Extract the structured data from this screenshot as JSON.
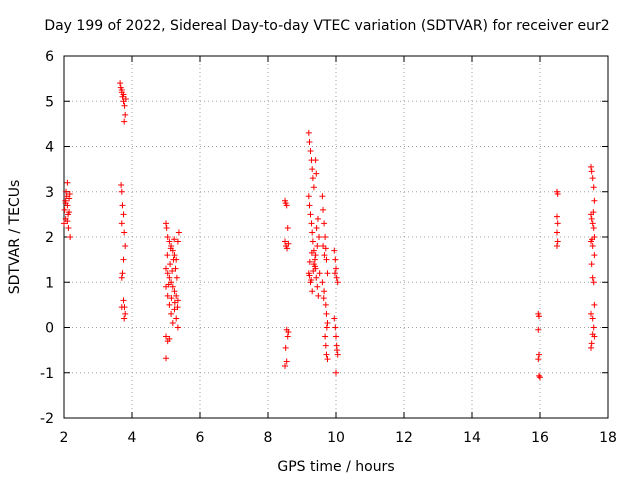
{
  "chart_data": {
    "type": "scatter",
    "title": "Day 199 of 2022, Sidereal Day-to-day VTEC variation (SDTVAR) for receiver eur2",
    "xlabel": "GPS time / hours",
    "ylabel": "SDTVAR / TECUs",
    "xlim": [
      2,
      18
    ],
    "ylim": [
      -2,
      6
    ],
    "xticks": [
      2,
      4,
      6,
      8,
      10,
      12,
      14,
      16,
      18
    ],
    "yticks": [
      -2,
      -1,
      0,
      1,
      2,
      3,
      4,
      5,
      6
    ],
    "xtick_labels": [
      "2",
      "4",
      "6",
      "8",
      "10",
      "12",
      "14",
      "16",
      "18"
    ],
    "ytick_labels": [
      "-2",
      "-1",
      "0",
      "1",
      "2",
      "3",
      "4",
      "5",
      "6"
    ],
    "grid": true,
    "marker": "plus",
    "color": "#ff0000",
    "series": [
      {
        "name": "SDTVAR",
        "points": [
          [
            2.0,
            2.3
          ],
          [
            2.02,
            2.6
          ],
          [
            2.04,
            2.8
          ],
          [
            2.05,
            2.4
          ],
          [
            2.06,
            3.0
          ],
          [
            2.08,
            2.9
          ],
          [
            2.1,
            2.7
          ],
          [
            2.1,
            3.2
          ],
          [
            2.12,
            2.5
          ],
          [
            2.13,
            2.2
          ],
          [
            2.15,
            2.85
          ],
          [
            2.17,
            2.95
          ],
          [
            2.18,
            2.0
          ],
          [
            2.05,
            2.75
          ],
          [
            2.1,
            2.35
          ],
          [
            2.15,
            2.55
          ],
          [
            3.65,
            5.4
          ],
          [
            3.67,
            5.3
          ],
          [
            3.7,
            5.2
          ],
          [
            3.72,
            5.1
          ],
          [
            3.75,
            5.0
          ],
          [
            3.78,
            4.9
          ],
          [
            3.8,
            4.7
          ],
          [
            3.77,
            4.55
          ],
          [
            3.7,
            5.25
          ],
          [
            3.75,
            5.15
          ],
          [
            3.82,
            5.05
          ],
          [
            3.68,
            3.15
          ],
          [
            3.7,
            3.0
          ],
          [
            3.72,
            2.7
          ],
          [
            3.75,
            2.5
          ],
          [
            3.7,
            2.3
          ],
          [
            3.77,
            2.1
          ],
          [
            3.8,
            1.8
          ],
          [
            3.75,
            1.5
          ],
          [
            3.72,
            1.2
          ],
          [
            3.7,
            1.1
          ],
          [
            3.75,
            0.6
          ],
          [
            3.78,
            0.45
          ],
          [
            3.8,
            0.3
          ],
          [
            3.77,
            0.2
          ],
          [
            3.7,
            0.45
          ],
          [
            5.0,
            2.3
          ],
          [
            5.02,
            2.2
          ],
          [
            5.05,
            2.0
          ],
          [
            5.1,
            1.9
          ],
          [
            5.15,
            1.8
          ],
          [
            5.2,
            1.7
          ],
          [
            5.25,
            1.6
          ],
          [
            5.3,
            1.5
          ],
          [
            5.35,
            1.9
          ],
          [
            5.38,
            2.1
          ],
          [
            5.0,
            1.3
          ],
          [
            5.05,
            1.2
          ],
          [
            5.1,
            1.1
          ],
          [
            5.15,
            1.0
          ],
          [
            5.2,
            0.9
          ],
          [
            5.25,
            0.8
          ],
          [
            5.3,
            0.7
          ],
          [
            5.35,
            0.6
          ],
          [
            5.0,
            0.9
          ],
          [
            5.05,
            0.7
          ],
          [
            5.1,
            0.5
          ],
          [
            5.15,
            0.3
          ],
          [
            5.2,
            0.1
          ],
          [
            5.25,
            0.4
          ],
          [
            5.3,
            0.2
          ],
          [
            5.35,
            0.0
          ],
          [
            5.0,
            -0.2
          ],
          [
            5.05,
            -0.3
          ],
          [
            5.1,
            -0.25
          ],
          [
            5.0,
            -0.68
          ],
          [
            5.12,
            1.4
          ],
          [
            5.22,
            1.5
          ],
          [
            5.28,
            1.3
          ],
          [
            5.32,
            1.1
          ],
          [
            5.18,
            1.25
          ],
          [
            5.08,
            0.95
          ],
          [
            5.16,
            0.65
          ],
          [
            5.26,
            0.55
          ],
          [
            5.34,
            0.45
          ],
          [
            5.04,
            1.6
          ],
          [
            5.14,
            1.75
          ],
          [
            5.24,
            1.95
          ],
          [
            8.5,
            2.8
          ],
          [
            8.52,
            2.75
          ],
          [
            8.55,
            2.7
          ],
          [
            8.58,
            2.2
          ],
          [
            8.5,
            1.9
          ],
          [
            8.53,
            1.8
          ],
          [
            8.56,
            1.75
          ],
          [
            8.6,
            1.85
          ],
          [
            8.55,
            -0.05
          ],
          [
            8.58,
            -0.2
          ],
          [
            8.52,
            -0.45
          ],
          [
            8.55,
            -0.75
          ],
          [
            8.5,
            -0.85
          ],
          [
            8.6,
            -0.1
          ],
          [
            9.2,
            4.3
          ],
          [
            9.22,
            4.1
          ],
          [
            9.25,
            3.9
          ],
          [
            9.28,
            3.7
          ],
          [
            9.3,
            3.5
          ],
          [
            9.32,
            3.3
          ],
          [
            9.35,
            3.1
          ],
          [
            9.4,
            3.7
          ],
          [
            9.42,
            3.4
          ],
          [
            9.2,
            2.9
          ],
          [
            9.22,
            2.7
          ],
          [
            9.25,
            2.5
          ],
          [
            9.28,
            2.3
          ],
          [
            9.3,
            2.1
          ],
          [
            9.32,
            1.9
          ],
          [
            9.35,
            1.7
          ],
          [
            9.38,
            1.5
          ],
          [
            9.4,
            1.3
          ],
          [
            9.42,
            1.1
          ],
          [
            9.45,
            0.9
          ],
          [
            9.48,
            0.7
          ],
          [
            9.2,
            1.2
          ],
          [
            9.25,
            1.0
          ],
          [
            9.3,
            0.8
          ],
          [
            9.35,
            1.4
          ],
          [
            9.4,
            1.6
          ],
          [
            9.45,
            1.8
          ],
          [
            9.5,
            2.0
          ],
          [
            9.52,
            1.2
          ],
          [
            9.22,
            1.15
          ],
          [
            9.27,
            1.05
          ],
          [
            9.33,
            1.25
          ],
          [
            9.38,
            1.35
          ],
          [
            9.43,
            2.2
          ],
          [
            9.47,
            2.4
          ],
          [
            9.23,
            1.45
          ],
          [
            9.29,
            1.65
          ],
          [
            9.6,
            2.9
          ],
          [
            9.62,
            2.6
          ],
          [
            9.65,
            2.3
          ],
          [
            9.68,
            2.0
          ],
          [
            9.7,
            1.75
          ],
          [
            9.72,
            1.5
          ],
          [
            9.75,
            1.2
          ],
          [
            9.6,
            1.0
          ],
          [
            9.65,
            0.8
          ],
          [
            9.7,
            0.5
          ],
          [
            9.72,
            0.3
          ],
          [
            9.75,
            0.1
          ],
          [
            9.68,
            -0.2
          ],
          [
            9.7,
            -0.4
          ],
          [
            9.72,
            -0.6
          ],
          [
            9.75,
            -0.7
          ],
          [
            9.62,
            1.8
          ],
          [
            9.66,
            1.6
          ],
          [
            9.73,
            0.0
          ],
          [
            9.64,
            0.65
          ],
          [
            9.95,
            1.7
          ],
          [
            9.98,
            1.5
          ],
          [
            10.0,
            1.3
          ],
          [
            10.02,
            1.1
          ],
          [
            10.05,
            1.0
          ],
          [
            9.95,
            0.2
          ],
          [
            9.98,
            0.0
          ],
          [
            10.0,
            -0.2
          ],
          [
            10.02,
            -0.4
          ],
          [
            10.05,
            -0.6
          ],
          [
            10.0,
            -1.0
          ],
          [
            9.97,
            1.2
          ],
          [
            10.03,
            -0.5
          ],
          [
            15.95,
            0.3
          ],
          [
            15.97,
            0.25
          ],
          [
            15.95,
            -0.05
          ],
          [
            15.97,
            -0.6
          ],
          [
            15.95,
            -0.7
          ],
          [
            15.97,
            -1.07
          ],
          [
            16.0,
            -1.1
          ],
          [
            16.5,
            3.0
          ],
          [
            16.52,
            2.95
          ],
          [
            16.5,
            2.45
          ],
          [
            16.52,
            2.3
          ],
          [
            16.5,
            2.1
          ],
          [
            16.52,
            1.9
          ],
          [
            16.5,
            1.8
          ],
          [
            17.5,
            3.55
          ],
          [
            17.52,
            3.45
          ],
          [
            17.55,
            3.3
          ],
          [
            17.58,
            3.1
          ],
          [
            17.6,
            2.8
          ],
          [
            17.5,
            2.5
          ],
          [
            17.52,
            2.4
          ],
          [
            17.55,
            2.3
          ],
          [
            17.58,
            2.2
          ],
          [
            17.6,
            2.0
          ],
          [
            17.5,
            1.9
          ],
          [
            17.55,
            1.8
          ],
          [
            17.6,
            1.6
          ],
          [
            17.52,
            1.4
          ],
          [
            17.55,
            1.1
          ],
          [
            17.58,
            1.0
          ],
          [
            17.6,
            0.5
          ],
          [
            17.5,
            0.3
          ],
          [
            17.55,
            0.2
          ],
          [
            17.58,
            0.0
          ],
          [
            17.6,
            -0.2
          ],
          [
            17.52,
            -0.35
          ],
          [
            17.5,
            -0.45
          ],
          [
            17.55,
            -0.15
          ],
          [
            17.57,
            2.55
          ],
          [
            17.53,
            1.95
          ]
        ]
      }
    ]
  }
}
